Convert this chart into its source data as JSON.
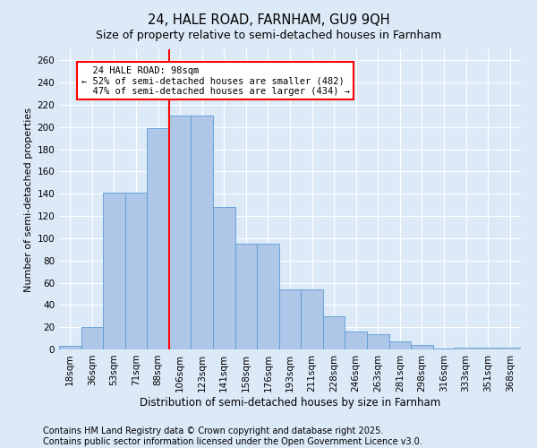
{
  "title": "24, HALE ROAD, FARNHAM, GU9 9QH",
  "subtitle": "Size of property relative to semi-detached houses in Farnham",
  "xlabel": "Distribution of semi-detached houses by size in Farnham",
  "ylabel": "Number of semi-detached properties",
  "bar_values": [
    3,
    20,
    141,
    141,
    199,
    210,
    210,
    128,
    95,
    95,
    54,
    54,
    30,
    16,
    14,
    7,
    4,
    1,
    2,
    2,
    2
  ],
  "bin_labels": [
    "18sqm",
    "36sqm",
    "53sqm",
    "71sqm",
    "88sqm",
    "106sqm",
    "123sqm",
    "141sqm",
    "158sqm",
    "176sqm",
    "193sqm",
    "211sqm",
    "228sqm",
    "246sqm",
    "263sqm",
    "281sqm",
    "298sqm",
    "316sqm",
    "333sqm",
    "351sqm",
    "368sqm"
  ],
  "bar_color": "#aec6e8",
  "bar_edge_color": "#5b9bd5",
  "property_label": "24 HALE ROAD: 98sqm",
  "pct_smaller": 52,
  "pct_smaller_count": 482,
  "pct_larger": 47,
  "pct_larger_count": 434,
  "vline_bin_index": 5,
  "vline_color": "red",
  "ylim": [
    0,
    270
  ],
  "yticks": [
    0,
    20,
    40,
    60,
    80,
    100,
    120,
    140,
    160,
    180,
    200,
    220,
    240,
    260
  ],
  "bg_color": "#dce9f7",
  "grid_color": "#ffffff",
  "footer": "Contains HM Land Registry data © Crown copyright and database right 2025.\nContains public sector information licensed under the Open Government Licence v3.0.",
  "footer_fontsize": 7.0,
  "title_fontsize": 10.5,
  "subtitle_fontsize": 9,
  "xlabel_fontsize": 8.5,
  "ylabel_fontsize": 8.0,
  "tick_fontsize": 7.5
}
